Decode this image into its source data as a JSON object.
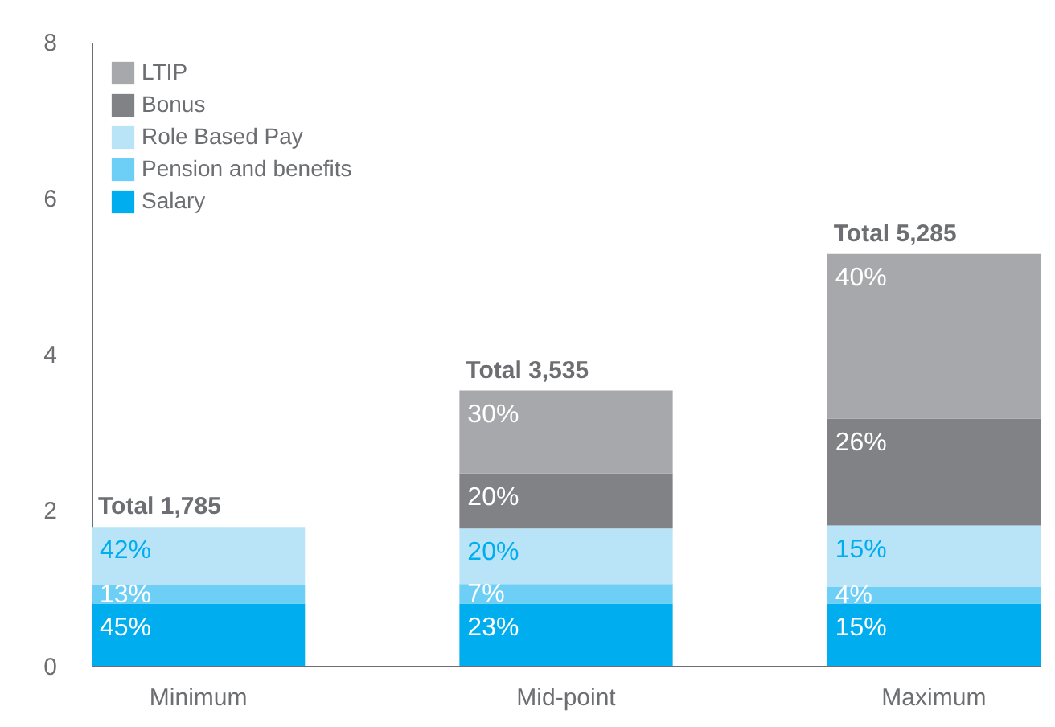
{
  "chart_data": {
    "type": "bar",
    "stacked": true,
    "categories": [
      "Minimum",
      "Mid-point",
      "Maximum"
    ],
    "series": [
      {
        "name": "Salary",
        "color": "#00aeef",
        "values": [
          0.8,
          0.8,
          0.8
        ]
      },
      {
        "name": "Pension and benefits",
        "color": "#6dcff6",
        "values": [
          0.23,
          0.25,
          0.21
        ]
      },
      {
        "name": "Role Based Pay",
        "color": "#b9e4f8",
        "values": [
          0.75,
          0.71,
          0.79
        ]
      },
      {
        "name": "Bonus",
        "color": "#808285",
        "values": [
          null,
          0.71,
          1.37
        ]
      },
      {
        "name": "LTIP",
        "color": "#a7a8ab",
        "values": [
          null,
          1.06,
          2.11
        ]
      }
    ],
    "annotations": [
      {
        "text": "45%",
        "x": "Minimum",
        "y": 0.8
      },
      {
        "text": "13%",
        "x": "Minimum",
        "y": 1.03
      },
      {
        "text": "42%",
        "x": "Minimum",
        "y": 1.78
      },
      {
        "text": "23%",
        "x": "Mid-point",
        "y": 0.8
      },
      {
        "text": "7%",
        "x": "Mid-point",
        "y": 1.05
      },
      {
        "text": "20%",
        "x": "Mid-point",
        "y": 1.76
      },
      {
        "text": "20%",
        "x": "Mid-point",
        "y": 2.47
      },
      {
        "text": "30%",
        "x": "Mid-point",
        "y": 3.53
      },
      {
        "text": "15%",
        "x": "Maximum",
        "y": 0.8
      },
      {
        "text": "4%",
        "x": "Maximum",
        "y": 1.01
      },
      {
        "text": "15%",
        "x": "Maximum",
        "y": 1.8
      },
      {
        "text": "26%",
        "x": "Maximum",
        "y": 3.17
      },
      {
        "text": "40%",
        "x": "Maximum",
        "y": 5.28
      }
    ],
    "totals": [
      "Total 1,785",
      "Total 3,535",
      "Total 5,285"
    ],
    "ylim": [
      0,
      8
    ],
    "yticks": [
      0,
      2,
      4,
      6,
      8
    ],
    "grid": false,
    "legend": "top left"
  }
}
